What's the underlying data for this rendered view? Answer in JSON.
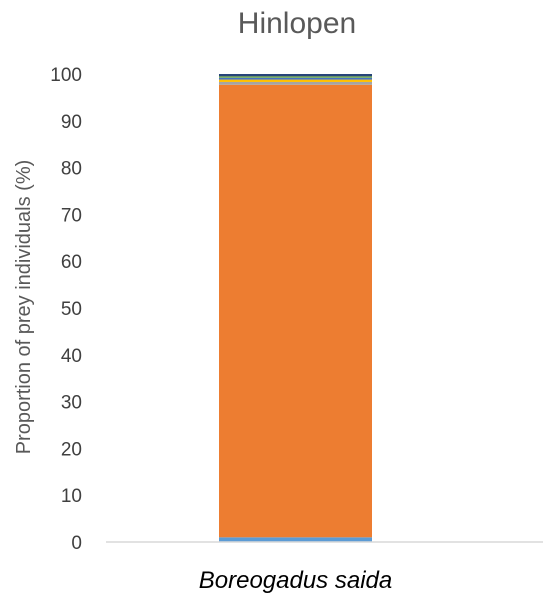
{
  "chart_data": {
    "type": "bar",
    "stacked": true,
    "title": "Hinlopen",
    "xlabel": "",
    "ylabel": "Proportion of prey individuals (%)",
    "ylim": [
      0,
      100
    ],
    "yticks": [
      0,
      10,
      20,
      30,
      40,
      50,
      60,
      70,
      80,
      90,
      100
    ],
    "categories": [
      "Boreogadus saida"
    ],
    "grid": false,
    "legend": "none",
    "series": [
      {
        "values": [
          1.0
        ],
        "color": "#5B9BD5"
      },
      {
        "values": [
          96.7
        ],
        "color": "#ED7D31"
      },
      {
        "values": [
          0.6
        ],
        "color": "#A5A5A5"
      },
      {
        "values": [
          0.5
        ],
        "color": "#FFC000"
      },
      {
        "values": [
          0.4
        ],
        "color": "#4472C4"
      },
      {
        "values": [
          0.3
        ],
        "color": "#70AD47"
      },
      {
        "values": [
          0.5
        ],
        "color": "#264478"
      }
    ]
  }
}
